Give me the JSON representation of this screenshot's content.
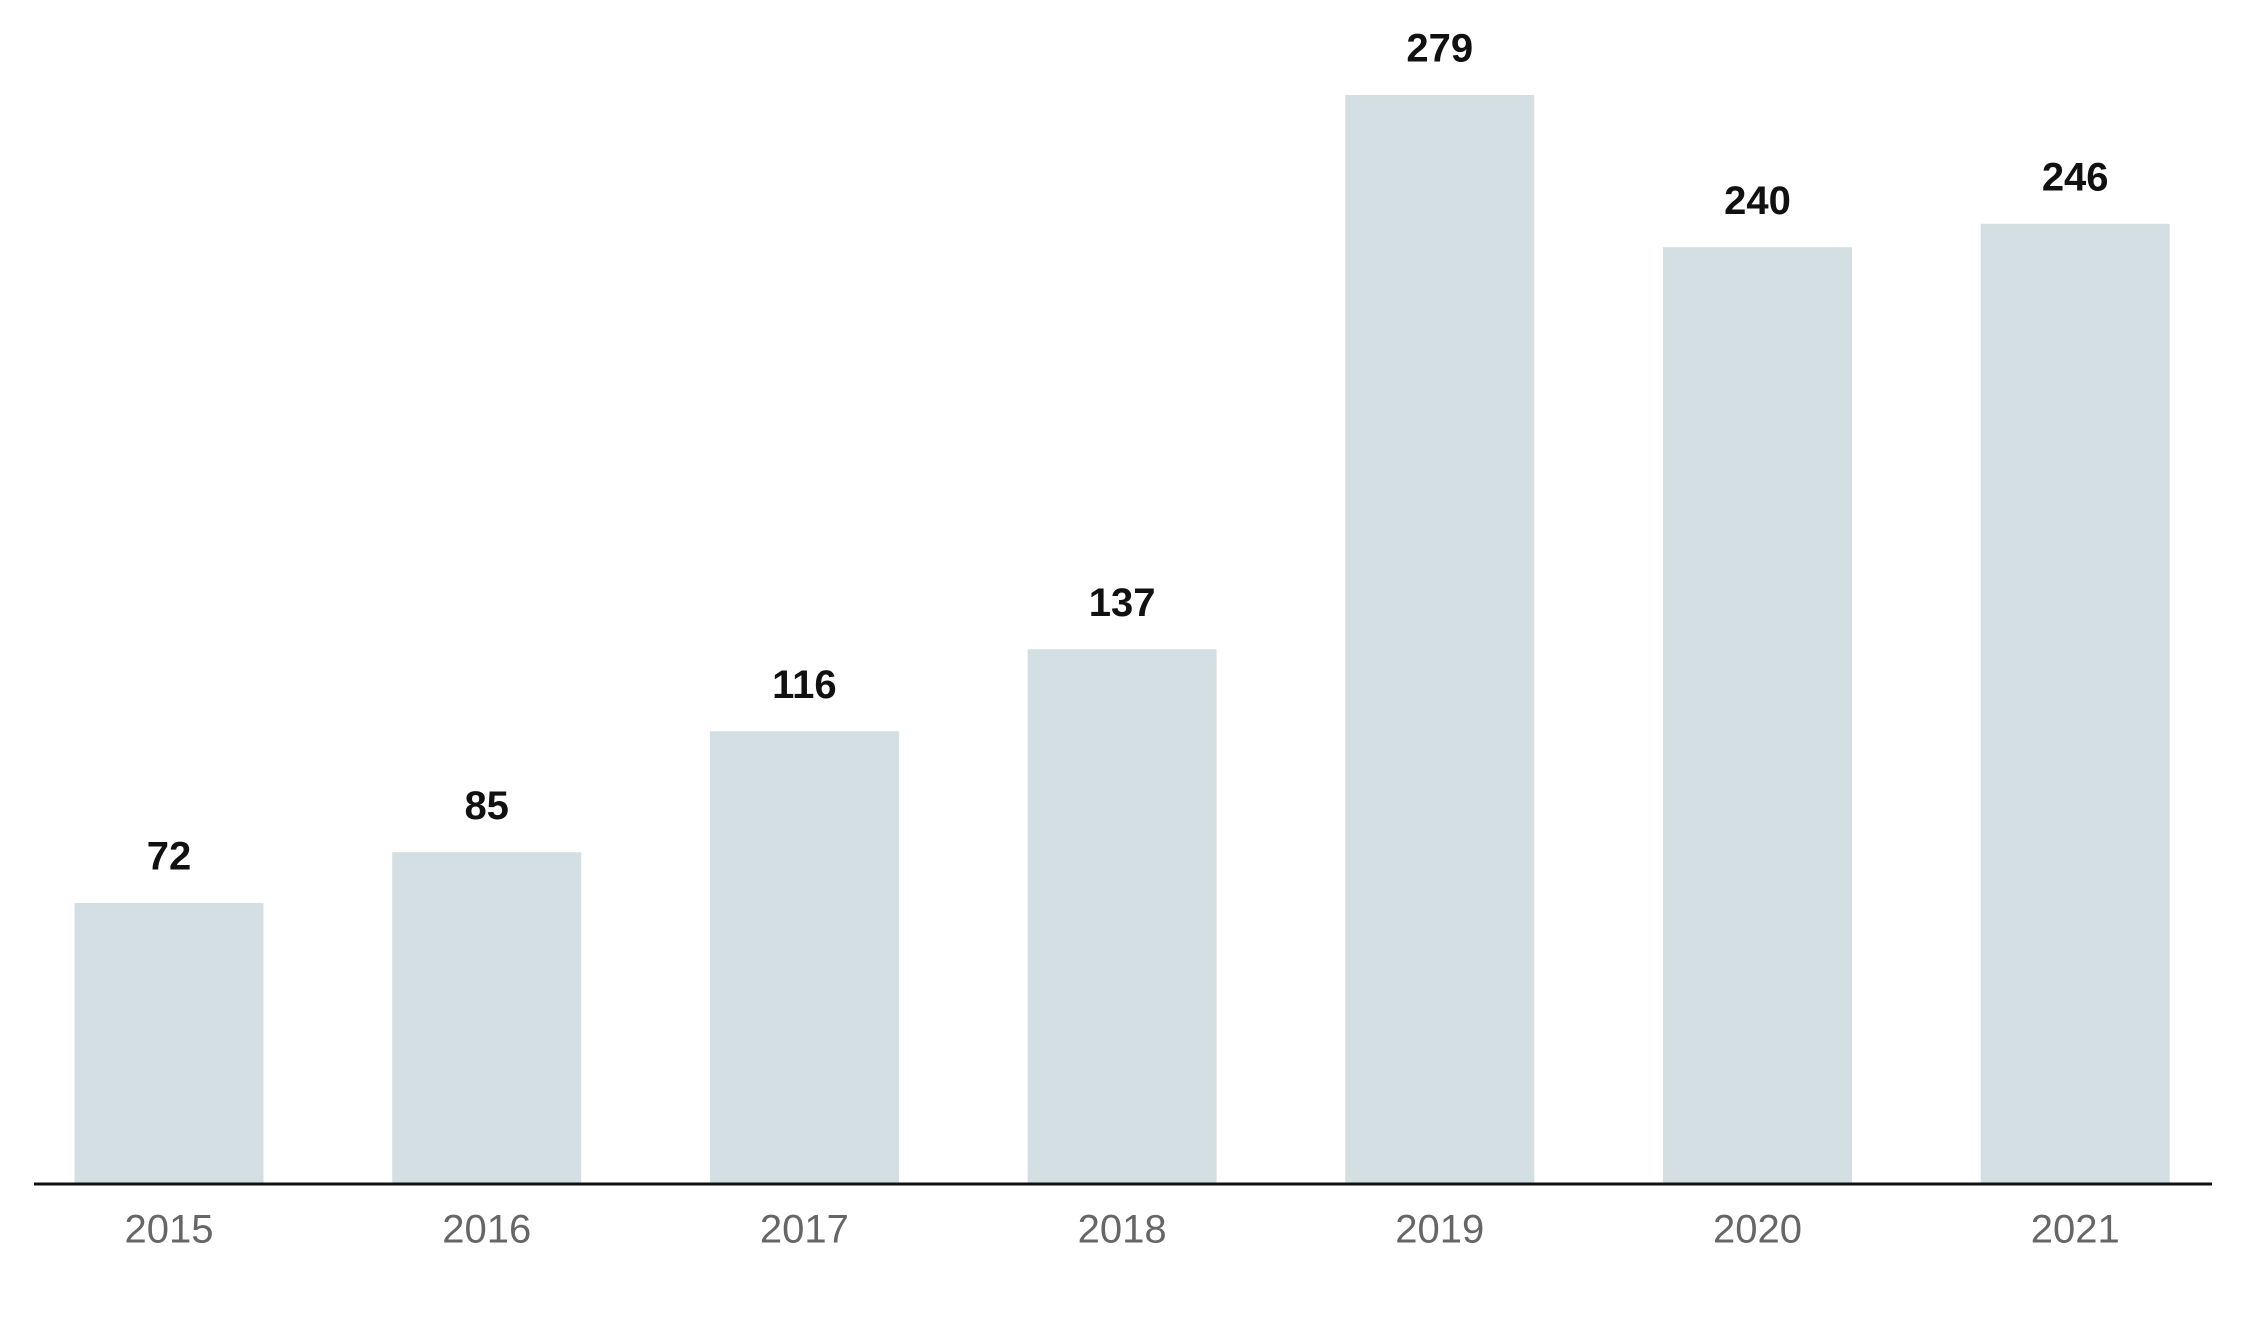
{
  "chart_data": {
    "type": "bar",
    "categories": [
      "2015",
      "2016",
      "2017",
      "2018",
      "2019",
      "2020",
      "2021"
    ],
    "values": [
      72,
      85,
      116,
      137,
      279,
      240,
      246
    ],
    "color": "#d3dfe3",
    "ylim": [
      0,
      300
    ]
  }
}
